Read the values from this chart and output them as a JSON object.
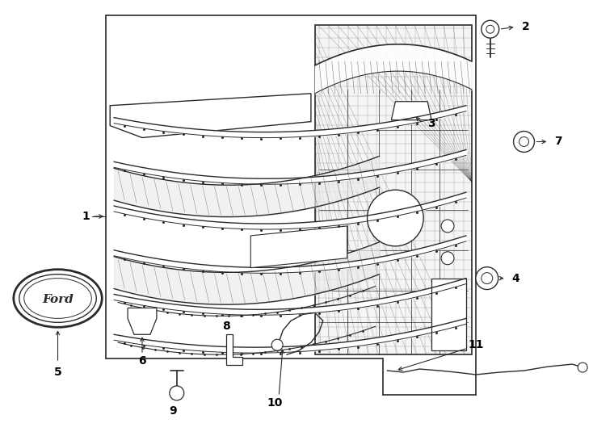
{
  "bg_color": "#ffffff",
  "line_color": "#2a2a2a",
  "fig_width": 7.34,
  "fig_height": 5.4,
  "dpi": 100
}
